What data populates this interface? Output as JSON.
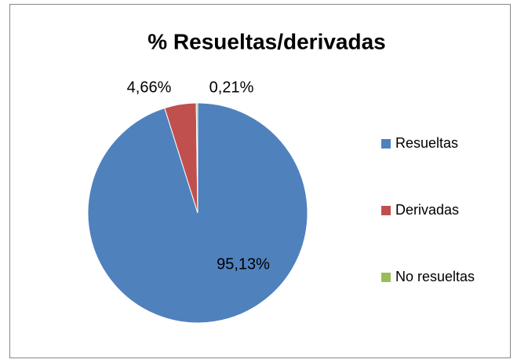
{
  "chart_data": {
    "type": "pie",
    "title": "% Resueltas/derivadas",
    "categories": [
      "Resueltas",
      "Derivadas",
      "No resueltas"
    ],
    "values": [
      95.13,
      4.66,
      0.21
    ],
    "value_labels": [
      "95,13%",
      "4,66%",
      "0,21%"
    ],
    "colors": [
      "#4f81bd",
      "#c0504d",
      "#9bbb59"
    ],
    "legend": "right"
  }
}
